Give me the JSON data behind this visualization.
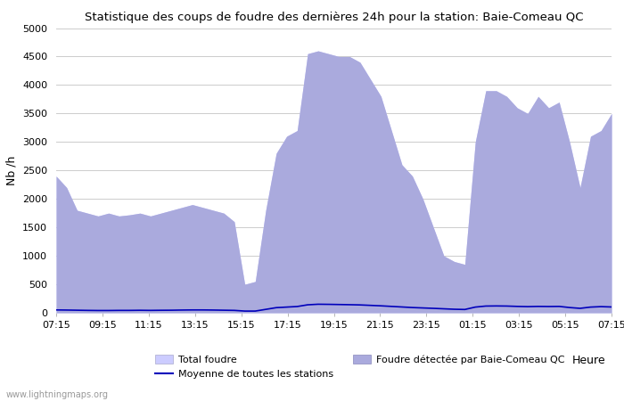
{
  "title": "Statistique des coups de foudre des dernières 24h pour la station: Baie-Comeau QC",
  "xlabel": "Heure",
  "ylabel": "Nb /h",
  "ylim": [
    0,
    5000
  ],
  "yticks": [
    0,
    500,
    1000,
    1500,
    2000,
    2500,
    3000,
    3500,
    4000,
    4500,
    5000
  ],
  "xtick_labels": [
    "07:15",
    "09:15",
    "11:15",
    "13:15",
    "15:15",
    "17:15",
    "19:15",
    "21:15",
    "23:15",
    "01:15",
    "03:15",
    "05:15",
    "07:15"
  ],
  "watermark": "www.lightningmaps.org",
  "fill_total_color": "#ccccff",
  "fill_detected_color": "#aaaadd",
  "line_mean_color": "#0000bb",
  "background_color": "#ffffff",
  "grid_color": "#cccccc",
  "total_foudre": [
    2400,
    2200,
    1800,
    1750,
    1700,
    1750,
    1700,
    1720,
    1750,
    1700,
    1750,
    1800,
    1850,
    1900,
    1850,
    1800,
    1750,
    1600,
    500,
    550,
    1800,
    2800,
    3100,
    3200,
    4550,
    4600,
    4550,
    4500,
    4500,
    4400,
    4100,
    3800,
    3200,
    2600,
    2400,
    2000,
    1500,
    1000,
    900,
    850,
    3000,
    3900,
    3900,
    3800,
    3600,
    3500,
    3800,
    3600,
    3700,
    3000,
    2200,
    3100,
    3200,
    3500
  ],
  "detected_baie_comeau": [
    2400,
    2200,
    1800,
    1750,
    1700,
    1750,
    1700,
    1720,
    1750,
    1700,
    1750,
    1800,
    1850,
    1900,
    1850,
    1800,
    1750,
    1600,
    500,
    550,
    1800,
    2800,
    3100,
    3200,
    4550,
    4600,
    4550,
    4500,
    4500,
    4400,
    4100,
    3800,
    3200,
    2600,
    2400,
    2000,
    1500,
    1000,
    900,
    850,
    3000,
    3900,
    3900,
    3800,
    3600,
    3500,
    3800,
    3600,
    3700,
    3000,
    2200,
    3100,
    3200,
    3500
  ],
  "mean_stations": [
    50,
    48,
    45,
    42,
    40,
    40,
    42,
    42,
    44,
    42,
    44,
    45,
    48,
    50,
    50,
    48,
    45,
    42,
    30,
    30,
    60,
    90,
    100,
    110,
    140,
    150,
    148,
    145,
    142,
    138,
    130,
    122,
    112,
    102,
    92,
    85,
    78,
    70,
    62,
    58,
    100,
    118,
    120,
    118,
    112,
    108,
    112,
    110,
    112,
    92,
    78,
    100,
    108,
    102
  ]
}
